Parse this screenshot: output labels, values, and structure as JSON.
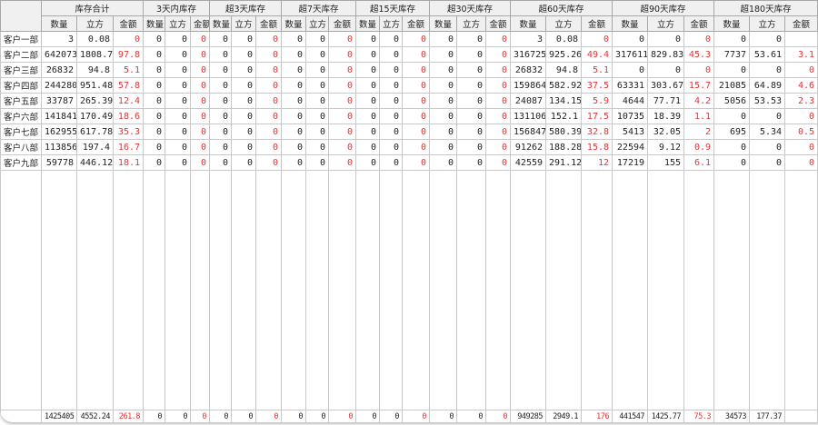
{
  "groups": [
    "库存合计",
    "3天内库存",
    "超3天库存",
    "超7天库存",
    "超15天库存",
    "超30天库存",
    "超60天库存",
    "超90天库存",
    "超180天库存"
  ],
  "sub_headers": [
    "数量",
    "立方",
    "金额"
  ],
  "rows": [
    {
      "name": "客户一部",
      "values": [
        "3",
        "0.08",
        "0",
        "0",
        "0",
        "0",
        "0",
        "0",
        "0",
        "0",
        "0",
        "0",
        "0",
        "0",
        "0",
        "0",
        "0",
        "0",
        "3",
        "0.08",
        "0",
        "0",
        "0",
        "0",
        "0",
        "0",
        ""
      ]
    },
    {
      "name": "客户二部",
      "values": [
        "642073",
        "1808.7",
        "97.8",
        "0",
        "0",
        "0",
        "0",
        "0",
        "0",
        "0",
        "0",
        "0",
        "0",
        "0",
        "0",
        "0",
        "0",
        "0",
        "316725",
        "925.26",
        "49.4",
        "317611",
        "829.83",
        "45.3",
        "7737",
        "53.61",
        "3.1"
      ]
    },
    {
      "name": "客户三部",
      "values": [
        "26832",
        "94.8",
        "5.1",
        "0",
        "0",
        "0",
        "0",
        "0",
        "0",
        "0",
        "0",
        "0",
        "0",
        "0",
        "0",
        "0",
        "0",
        "0",
        "26832",
        "94.8",
        "5.1",
        "0",
        "0",
        "0",
        "0",
        "0",
        "0"
      ]
    },
    {
      "name": "客户四部",
      "values": [
        "244280",
        "951.48",
        "57.8",
        "0",
        "0",
        "0",
        "0",
        "0",
        "0",
        "0",
        "0",
        "0",
        "0",
        "0",
        "0",
        "0",
        "0",
        "0",
        "159864",
        "582.92",
        "37.5",
        "63331",
        "303.67",
        "15.7",
        "21085",
        "64.89",
        "4.6"
      ]
    },
    {
      "name": "客户五部",
      "values": [
        "33787",
        "265.39",
        "12.4",
        "0",
        "0",
        "0",
        "0",
        "0",
        "0",
        "0",
        "0",
        "0",
        "0",
        "0",
        "0",
        "0",
        "0",
        "0",
        "24087",
        "134.15",
        "5.9",
        "4644",
        "77.71",
        "4.2",
        "5056",
        "53.53",
        "2.3"
      ]
    },
    {
      "name": "客户六部",
      "values": [
        "141841",
        "170.49",
        "18.6",
        "0",
        "0",
        "0",
        "0",
        "0",
        "0",
        "0",
        "0",
        "0",
        "0",
        "0",
        "0",
        "0",
        "0",
        "0",
        "131106",
        "152.1",
        "17.5",
        "10735",
        "18.39",
        "1.1",
        "0",
        "0",
        "0"
      ]
    },
    {
      "name": "客户七部",
      "values": [
        "162955",
        "617.78",
        "35.3",
        "0",
        "0",
        "0",
        "0",
        "0",
        "0",
        "0",
        "0",
        "0",
        "0",
        "0",
        "0",
        "0",
        "0",
        "0",
        "156847",
        "580.39",
        "32.8",
        "5413",
        "32.05",
        "2",
        "695",
        "5.34",
        "0.5"
      ]
    },
    {
      "name": "客户八部",
      "values": [
        "113856",
        "197.4",
        "16.7",
        "0",
        "0",
        "0",
        "0",
        "0",
        "0",
        "0",
        "0",
        "0",
        "0",
        "0",
        "0",
        "0",
        "0",
        "0",
        "91262",
        "188.28",
        "15.8",
        "22594",
        "9.12",
        "0.9",
        "0",
        "0",
        "0"
      ]
    },
    {
      "name": "客户九部",
      "values": [
        "59778",
        "446.12",
        "18.1",
        "0",
        "0",
        "0",
        "0",
        "0",
        "0",
        "0",
        "0",
        "0",
        "0",
        "0",
        "0",
        "0",
        "0",
        "0",
        "42559",
        "291.12",
        "12",
        "17219",
        "155",
        "6.1",
        "0",
        "0",
        "0"
      ]
    }
  ],
  "totals": [
    "1425405",
    "4552.24",
    "261.8",
    "0",
    "0",
    "0",
    "0",
    "0",
    "0",
    "0",
    "0",
    "0",
    "0",
    "0",
    "0",
    "0",
    "0",
    "0",
    "949285",
    "2949.1",
    "176",
    "441547",
    "1425.77",
    "75.3",
    "34573",
    "177.37",
    ""
  ],
  "colors": {
    "amount": "#f03030",
    "header_bg": "#f0f0f0"
  }
}
